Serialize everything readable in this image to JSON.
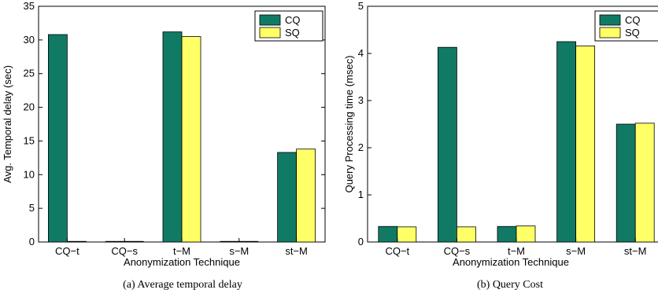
{
  "colors": {
    "CQ": "#117a65",
    "SQ": "#ffff66"
  },
  "chart_data": [
    {
      "type": "bar",
      "caption": "(a)  Average temporal delay",
      "xlabel": "Anonymization Technique",
      "ylabel": "Avg. Temporal delay (sec)",
      "categories": [
        "CQ−t",
        "CQ−s",
        "t−M",
        "s−M",
        "st−M"
      ],
      "ylim": [
        0,
        35
      ],
      "yticks": [
        0,
        5,
        10,
        15,
        20,
        25,
        30,
        35
      ],
      "legend": "top-right",
      "series": [
        {
          "name": "CQ",
          "values": [
            30.8,
            0,
            31.2,
            0,
            13.3
          ]
        },
        {
          "name": "SQ",
          "values": [
            0,
            0,
            30.5,
            0,
            13.8
          ]
        }
      ]
    },
    {
      "type": "bar",
      "caption": "(b)  Query Cost",
      "xlabel": "Anonymization Technique",
      "ylabel": "Query Processing time (msec)",
      "categories": [
        "CQ−t",
        "CQ−s",
        "t−M",
        "s−M",
        "st−M"
      ],
      "ylim": [
        0,
        5
      ],
      "yticks": [
        0,
        1,
        2,
        3,
        4,
        5
      ],
      "legend": "top-right",
      "series": [
        {
          "name": "CQ",
          "values": [
            0.33,
            4.13,
            0.33,
            4.25,
            2.5
          ]
        },
        {
          "name": "SQ",
          "values": [
            0.32,
            0.32,
            0.34,
            4.16,
            2.52
          ]
        }
      ]
    }
  ]
}
